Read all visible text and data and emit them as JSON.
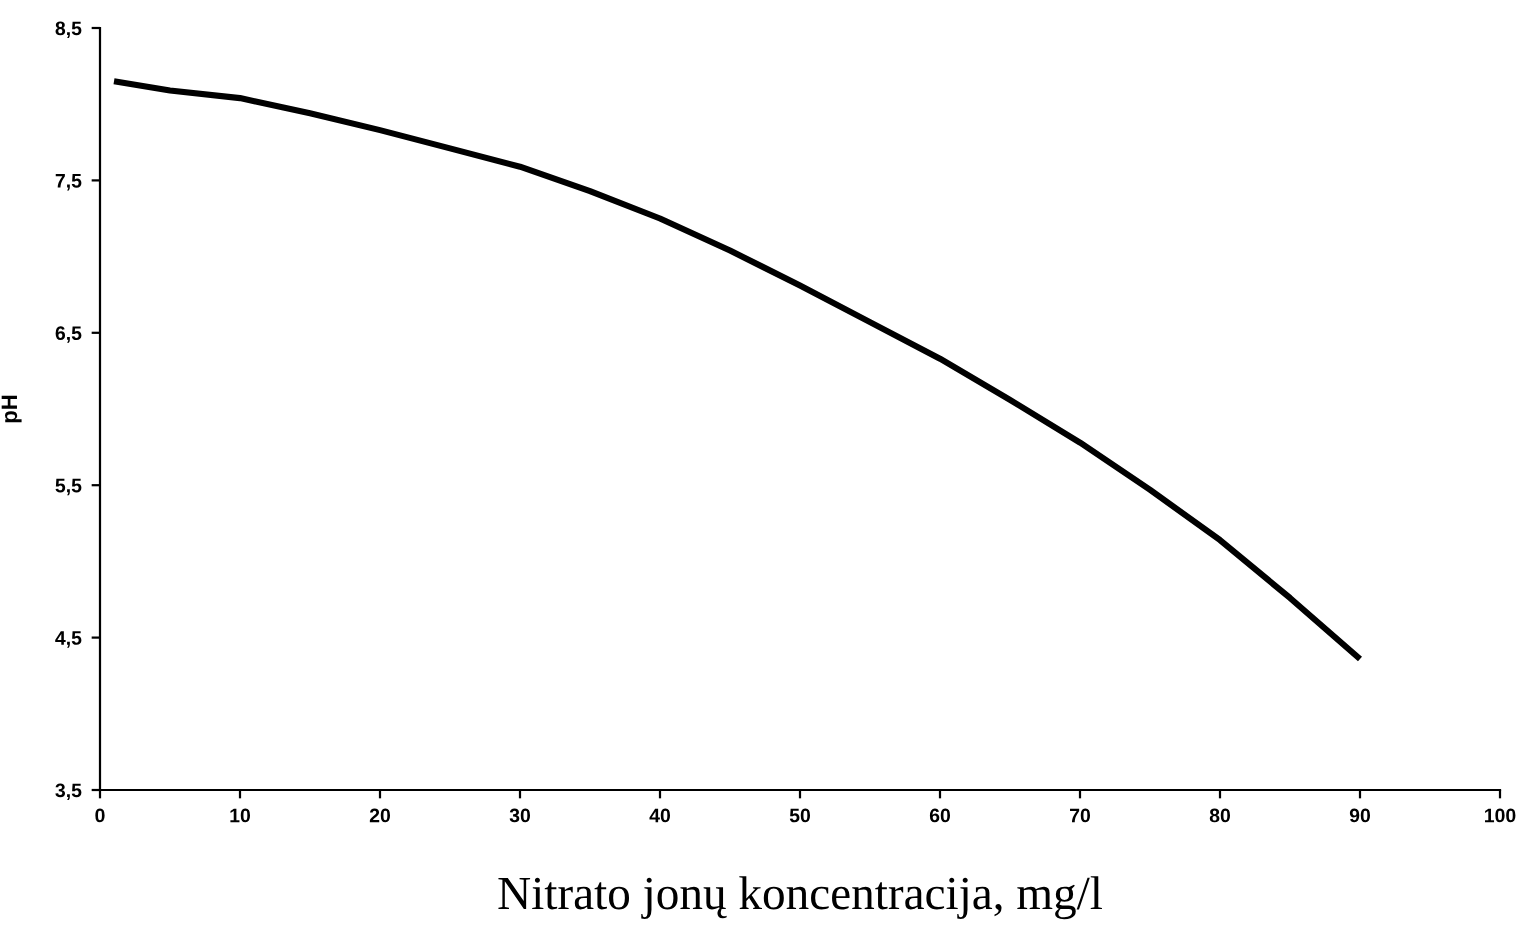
{
  "chart_data": {
    "type": "line",
    "xlabel": "Nitrato jonų koncentracija, mg/l",
    "ylabel": "pH",
    "x": [
      1,
      5,
      10,
      15,
      20,
      25,
      30,
      35,
      40,
      45,
      50,
      55,
      60,
      65,
      70,
      75,
      80,
      85,
      90
    ],
    "series": [
      {
        "color": "#000000",
        "values": [
          8.15,
          8.09,
          8.04,
          7.94,
          7.83,
          7.71,
          7.59,
          7.43,
          7.25,
          7.04,
          6.81,
          6.57,
          6.33,
          6.06,
          5.78,
          5.47,
          5.14,
          4.76,
          4.36
        ]
      }
    ],
    "xlim": [
      0,
      100
    ],
    "xticks": [
      0,
      10,
      20,
      30,
      40,
      50,
      60,
      70,
      80,
      90,
      100
    ],
    "ylim": [
      3.5,
      8.5
    ],
    "yticks": [
      {
        "value": 3.5,
        "label": "3,5"
      },
      {
        "value": 4.5,
        "label": "4,5"
      },
      {
        "value": 5.5,
        "label": "5,5"
      },
      {
        "value": 6.5,
        "label": "6,5"
      },
      {
        "value": 7.5,
        "label": "7,5"
      },
      {
        "value": 8.5,
        "label": "8,5"
      }
    ],
    "grid": false,
    "marker": "none",
    "line_style": "solid"
  }
}
